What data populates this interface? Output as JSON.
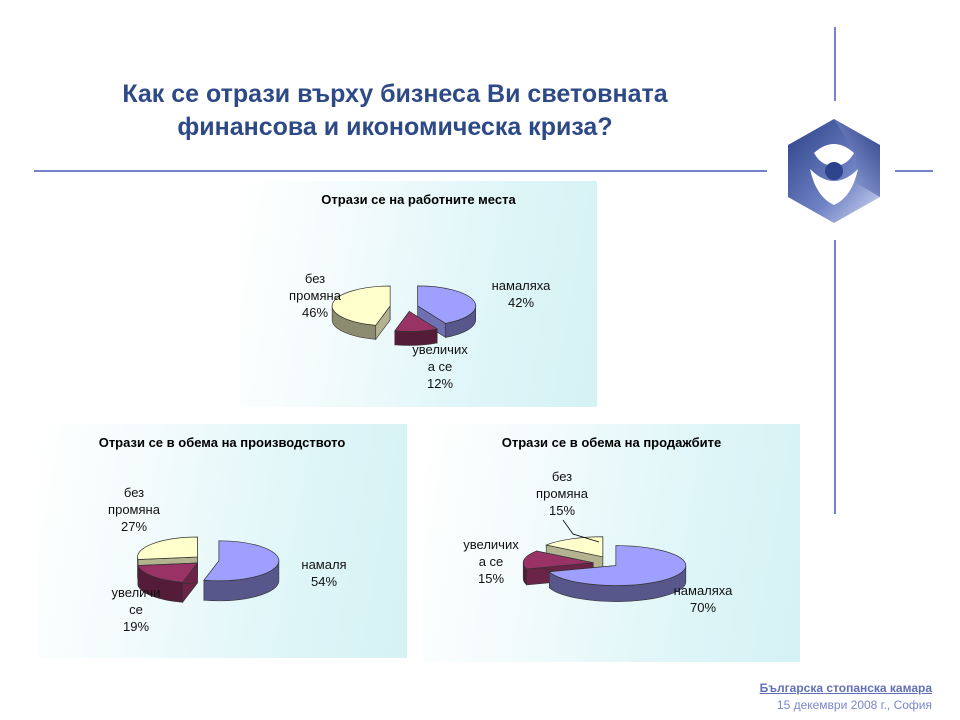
{
  "slide": {
    "title_line1": "Как се отрази върху бизнеса Ви световната",
    "title_line2": "финансова и икономическа криза?"
  },
  "footer": {
    "organization": "Българска стопанска камара",
    "date": "15 декември 2008 г., София"
  },
  "colors": {
    "title": "#2e4a86",
    "rule": "#7383c9",
    "decreased": "#9f9fff",
    "increased": "#993366",
    "no_change": "#ffffcc"
  },
  "logo": {
    "icon": "bsk-hexagon-logo"
  },
  "chart_data": [
    {
      "type": "pie",
      "title": "Отрази се на работните места",
      "labels": [
        "намаляха",
        "увеличиха се",
        "без промяна"
      ],
      "values": [
        42,
        12,
        46
      ],
      "value_labels": [
        "42%",
        "12%",
        "46%"
      ],
      "colors": [
        "#9f9fff",
        "#993366",
        "#ffffcc"
      ],
      "style": "3D exploded",
      "legend": "none"
    },
    {
      "type": "pie",
      "title": "Отрази се в обема на производството",
      "labels": [
        "намаля",
        "увеличи се",
        "без промяна"
      ],
      "values": [
        54,
        19,
        27
      ],
      "value_labels": [
        "54%",
        "19%",
        "27%"
      ],
      "colors": [
        "#9f9fff",
        "#993366",
        "#ffffcc"
      ],
      "style": "3D exploded",
      "legend": "none"
    },
    {
      "type": "pie",
      "title": "Отрази се в обема на продажбите",
      "labels": [
        "намаляха",
        "увеличиха се",
        "без промяна"
      ],
      "values": [
        70,
        15,
        15
      ],
      "value_labels": [
        "70%",
        "15%",
        "15%"
      ],
      "colors": [
        "#9f9fff",
        "#993366",
        "#ffffcc"
      ],
      "style": "3D exploded",
      "legend": "none"
    }
  ]
}
